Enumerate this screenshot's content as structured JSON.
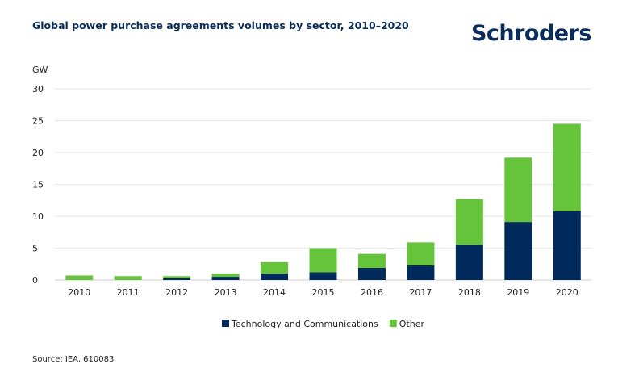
{
  "title": "Global power purchase agreements volumes by sector, 2010–2020",
  "brand": "Schroders",
  "source": "Source: IEA. 610083",
  "chart_data": {
    "type": "bar",
    "stacked": true,
    "unit_label": "GW",
    "categories": [
      "2010",
      "2011",
      "2012",
      "2013",
      "2014",
      "2015",
      "2016",
      "2017",
      "2018",
      "2019",
      "2020"
    ],
    "series": [
      {
        "name": "Technology and Communications",
        "color": "#002a5c",
        "values": [
          0,
          0,
          0.3,
          0.5,
          1.0,
          1.2,
          1.9,
          2.3,
          5.5,
          9.1,
          10.8
        ]
      },
      {
        "name": "Other",
        "color": "#66c43b",
        "values": [
          0.7,
          0.6,
          0.3,
          0.5,
          1.8,
          3.8,
          2.2,
          3.6,
          7.2,
          10.1,
          13.7
        ]
      }
    ],
    "ylim": [
      0,
      30
    ],
    "yticks": [
      0,
      5,
      10,
      15,
      20,
      25,
      30
    ],
    "grid": true,
    "legend": "bottom-center"
  }
}
